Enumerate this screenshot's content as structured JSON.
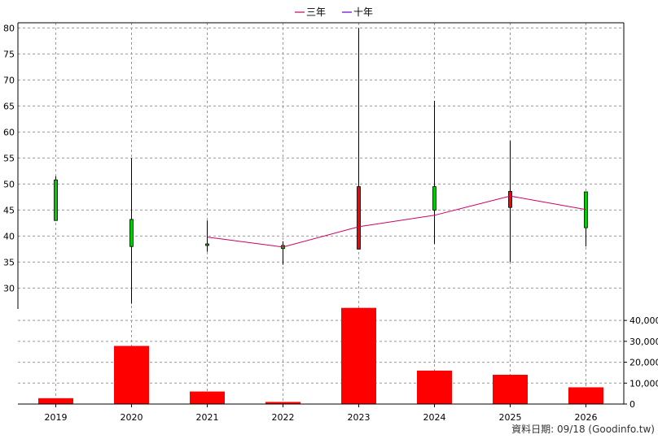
{
  "chart_data": [
    {
      "type": "candlestick",
      "categories": [
        "2019",
        "2020",
        "2021",
        "2022",
        "2023",
        "2024",
        "2025",
        "2026"
      ],
      "ohlc": [
        {
          "open": 43.0,
          "high": 51.5,
          "low": 43.0,
          "close": 50.8
        },
        {
          "open": 38.0,
          "high": 55.0,
          "low": 27.0,
          "close": 43.2
        },
        {
          "open": 38.2,
          "high": 43.0,
          "low": 37.0,
          "close": 38.5
        },
        {
          "open": 37.6,
          "high": 39.0,
          "low": 34.5,
          "close": 38.2
        },
        {
          "open": 49.5,
          "high": 80.0,
          "low": 37.5,
          "close": 37.5
        },
        {
          "open": 45.0,
          "high": 66.0,
          "low": 38.5,
          "close": 49.5
        },
        {
          "open": 48.6,
          "high": 58.3,
          "low": 35.0,
          "close": 45.5
        },
        {
          "open": 41.6,
          "high": 48.5,
          "low": 38.0,
          "close": 48.5
        }
      ],
      "candle_colors": {
        "up": "#00cc00",
        "down": "#ff0000"
      },
      "series": [
        {
          "name": "三年",
          "color": "#cc0066",
          "values": [
            null,
            null,
            39.8,
            37.9,
            41.8,
            44.0,
            47.7,
            45.1
          ]
        },
        {
          "name": "十年",
          "color": "#6600cc",
          "values": [
            null,
            null,
            null,
            null,
            null,
            null,
            null,
            null
          ]
        }
      ],
      "ylim": [
        26,
        81
      ],
      "yticks": [
        30,
        35,
        40,
        45,
        50,
        55,
        60,
        65,
        70,
        75,
        80
      ],
      "grid": true,
      "legend_position": "top-center"
    },
    {
      "type": "bar",
      "categories": [
        "2019",
        "2020",
        "2021",
        "2022",
        "2023",
        "2024",
        "2025",
        "2026"
      ],
      "values": [
        2800,
        27800,
        6000,
        1000,
        46000,
        16000,
        14000,
        8000
      ],
      "color": "#ff0000",
      "ylim": [
        0,
        45500
      ],
      "yticks": [
        0,
        10000,
        20000,
        30000,
        40000
      ],
      "ytick_labels": [
        "0",
        "10,000",
        "20,000",
        "30,000",
        "40,000"
      ],
      "grid": true
    }
  ],
  "footer": "資料日期: 09/18  (Goodinfo.tw)"
}
